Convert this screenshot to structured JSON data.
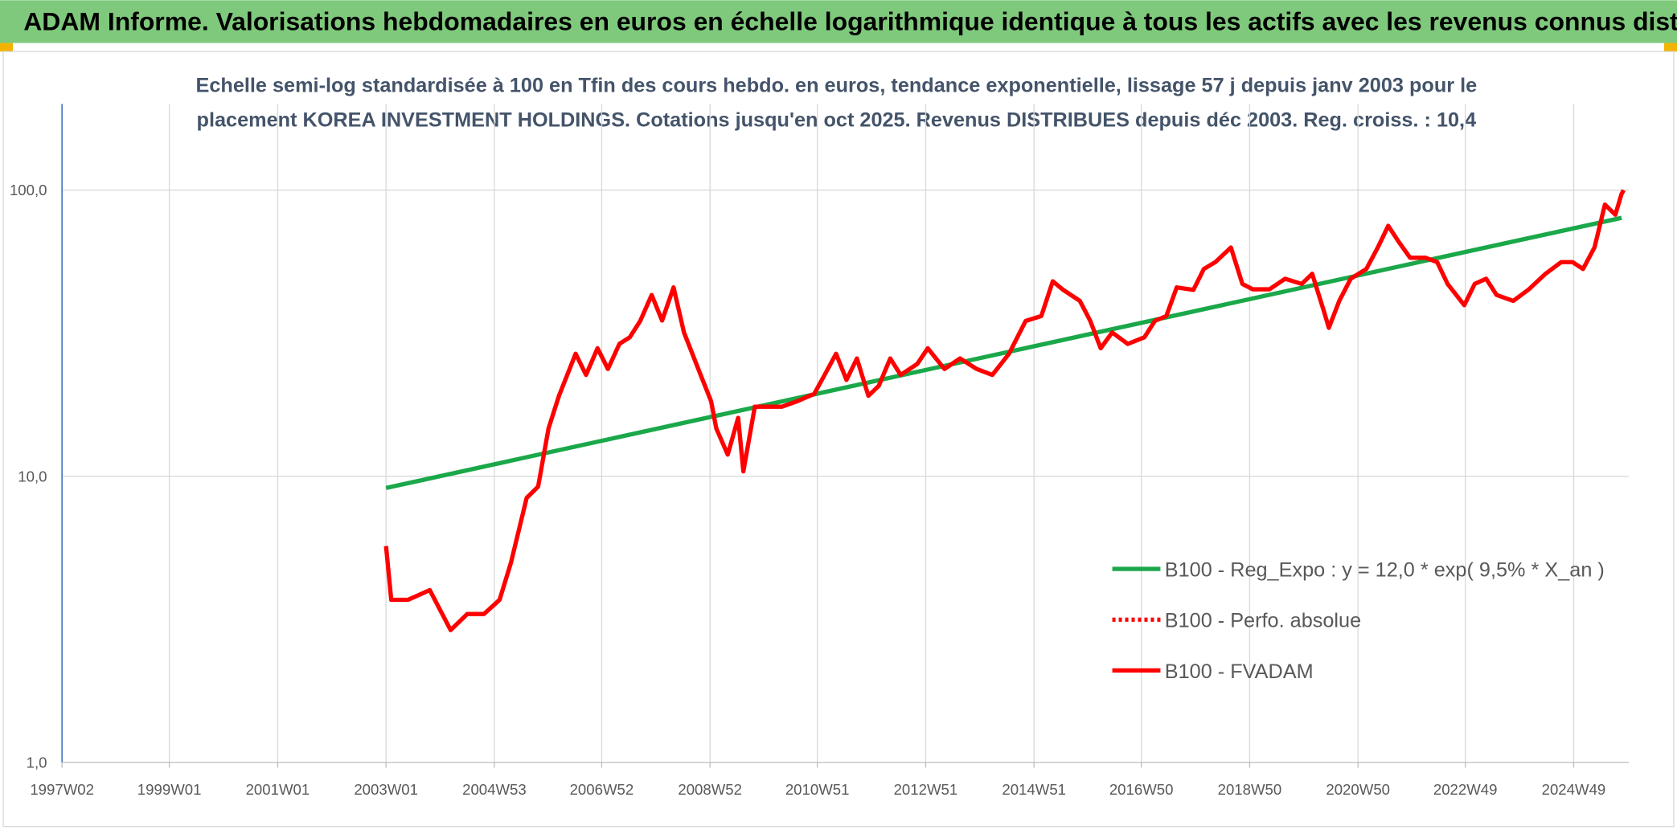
{
  "header": {
    "title": "ADAM Informe. Valorisations hebdomadaires en euros en échelle logarithmique identique à tous les actifs avec les revenus connus distribués"
  },
  "chart_data": {
    "type": "line",
    "title": [
      "Echelle semi-log standardisée à 100 en Tfin des cours hebdo. en euros, tendance exponentielle, lissage 57 j depuis janv 2003 pour le",
      "placement KOREA INVESTMENT HOLDINGS. Cotations jusqu'en oct 2025. Revenus DISTRIBUES depuis déc 2003. Reg. croiss. : 10,4"
    ],
    "log_scale": true,
    "grid": true,
    "legend": "bottom-right",
    "ylim": [
      1,
      200
    ],
    "yticks": [
      {
        "value": 1,
        "label": "1,0"
      },
      {
        "value": 10,
        "label": "10,0"
      },
      {
        "value": 100,
        "label": "100,0"
      }
    ],
    "xlim": [
      "1997W02",
      "2025W50"
    ],
    "xticks": [
      "1997W02",
      "1999W01",
      "2001W01",
      "2003W01",
      "2004W53",
      "2006W52",
      "2008W52",
      "2010W51",
      "2012W51",
      "2014W51",
      "2016W50",
      "2018W50",
      "2020W50",
      "2022W49",
      "2024W49"
    ],
    "series": [
      {
        "name": "B100 - Reg_Expo : y = 12,0 * exp( 9,5% *  X_an )",
        "color": "#1aa84a",
        "style": "solid",
        "x": [
          "2003W01",
          "2025W43"
        ],
        "values": [
          9.1,
          80
        ]
      },
      {
        "name": "B100 - Perfo. absolue",
        "color": "#ff0000",
        "style": "dotted",
        "x": [],
        "values": []
      },
      {
        "name": "B100 - FVADAM",
        "color": "#ff0000",
        "style": "solid",
        "x": [
          "2003W01",
          "2003W06",
          "2003W22",
          "2003W43",
          "2004W11",
          "2004W27",
          "2004W43",
          "2005W06",
          "2005W17",
          "2005W32",
          "2005W43",
          "2006W01",
          "2006W11",
          "2006W27",
          "2006W37",
          "2006W48",
          "2007W06",
          "2007W17",
          "2007W27",
          "2007W37",
          "2007W48",
          "2008W06",
          "2008W17",
          "2008W27",
          "2008W43",
          "2009W01",
          "2009W06",
          "2009W17",
          "2009W27",
          "2009W32",
          "2009W43",
          "2010W01",
          "2010W17",
          "2010W32",
          "2010W48",
          "2011W06",
          "2011W17",
          "2011W27",
          "2011W37",
          "2011W48",
          "2012W06",
          "2012W17",
          "2012W27",
          "2012W43",
          "2013W01",
          "2013W17",
          "2013W32",
          "2013W48",
          "2014W11",
          "2014W27",
          "2014W43",
          "2015W06",
          "2015W17",
          "2015W27",
          "2015W43",
          "2016W01",
          "2016W11",
          "2016W22",
          "2016W37",
          "2017W01",
          "2017W11",
          "2017W22",
          "2017W32",
          "2017W48",
          "2018W06",
          "2018W17",
          "2018W32",
          "2018W43",
          "2019W01",
          "2019W17",
          "2019W32",
          "2019W48",
          "2020W06",
          "2020W17",
          "2020W22",
          "2020W32",
          "2020W43",
          "2021W06",
          "2021W17",
          "2021W27",
          "2021W37",
          "2021W48",
          "2022W11",
          "2022W22",
          "2022W32",
          "2022W48",
          "2023W06",
          "2023W17",
          "2023W27",
          "2023W43",
          "2024W06",
          "2024W22",
          "2024W37",
          "2024W48",
          "2025W06",
          "2025W17",
          "2025W27",
          "2025W37",
          "2025W43",
          "2025W45"
        ],
        "values": [
          5.7,
          3.7,
          3.7,
          4.0,
          2.9,
          3.3,
          3.3,
          3.7,
          5.0,
          8.4,
          9.2,
          14.7,
          19.1,
          26.8,
          22.6,
          28,
          23.7,
          29,
          30.6,
          34.9,
          43,
          35,
          45.7,
          31.8,
          22.6,
          18.3,
          14.7,
          11.9,
          16,
          10.4,
          17.5,
          17.5,
          17.5,
          18.3,
          19.4,
          22.6,
          26.8,
          21.7,
          25.8,
          19.1,
          20.7,
          25.8,
          22.6,
          24.7,
          28,
          23.7,
          25.8,
          23.7,
          22.6,
          26.8,
          34.9,
          36.3,
          48,
          44.8,
          41,
          34.9,
          28,
          31.8,
          29,
          30.6,
          34.9,
          36.3,
          45.7,
          44.8,
          53,
          56,
          63,
          47,
          45,
          45,
          49,
          47,
          51,
          38,
          33,
          41,
          49,
          53,
          63,
          75,
          66,
          58,
          58,
          56,
          47,
          39.6,
          47,
          49,
          43,
          41,
          45,
          51,
          56,
          56,
          53,
          63,
          89,
          82,
          97,
          100
        ]
      }
    ]
  }
}
